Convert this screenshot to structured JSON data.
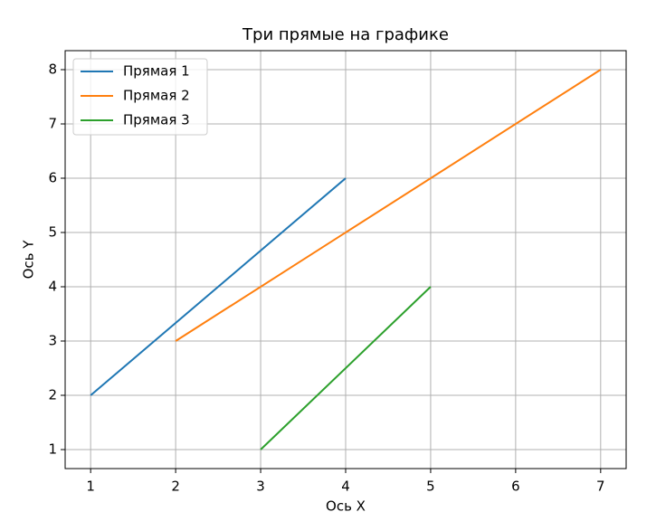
{
  "chart_data": {
    "type": "line",
    "title": "Три прямые на графике",
    "xlabel": "Ось X",
    "ylabel": "Ось Y",
    "series": [
      {
        "name": "Прямая 1",
        "color": "#1f77b4",
        "x": [
          1,
          4
        ],
        "values": [
          2,
          6
        ]
      },
      {
        "name": "Прямая 2",
        "color": "#ff7f0e",
        "x": [
          2,
          7
        ],
        "values": [
          3,
          8
        ]
      },
      {
        "name": "Прямая 3",
        "color": "#2ca02c",
        "x": [
          3,
          5
        ],
        "values": [
          1,
          4
        ]
      }
    ],
    "xlim": [
      0.7,
      7.3
    ],
    "ylim": [
      0.65,
      8.35
    ],
    "xticks": [
      1,
      2,
      3,
      4,
      5,
      6,
      7
    ],
    "yticks": [
      1,
      2,
      3,
      4,
      5,
      6,
      7,
      8
    ],
    "grid": true,
    "legend": "upper-left"
  }
}
